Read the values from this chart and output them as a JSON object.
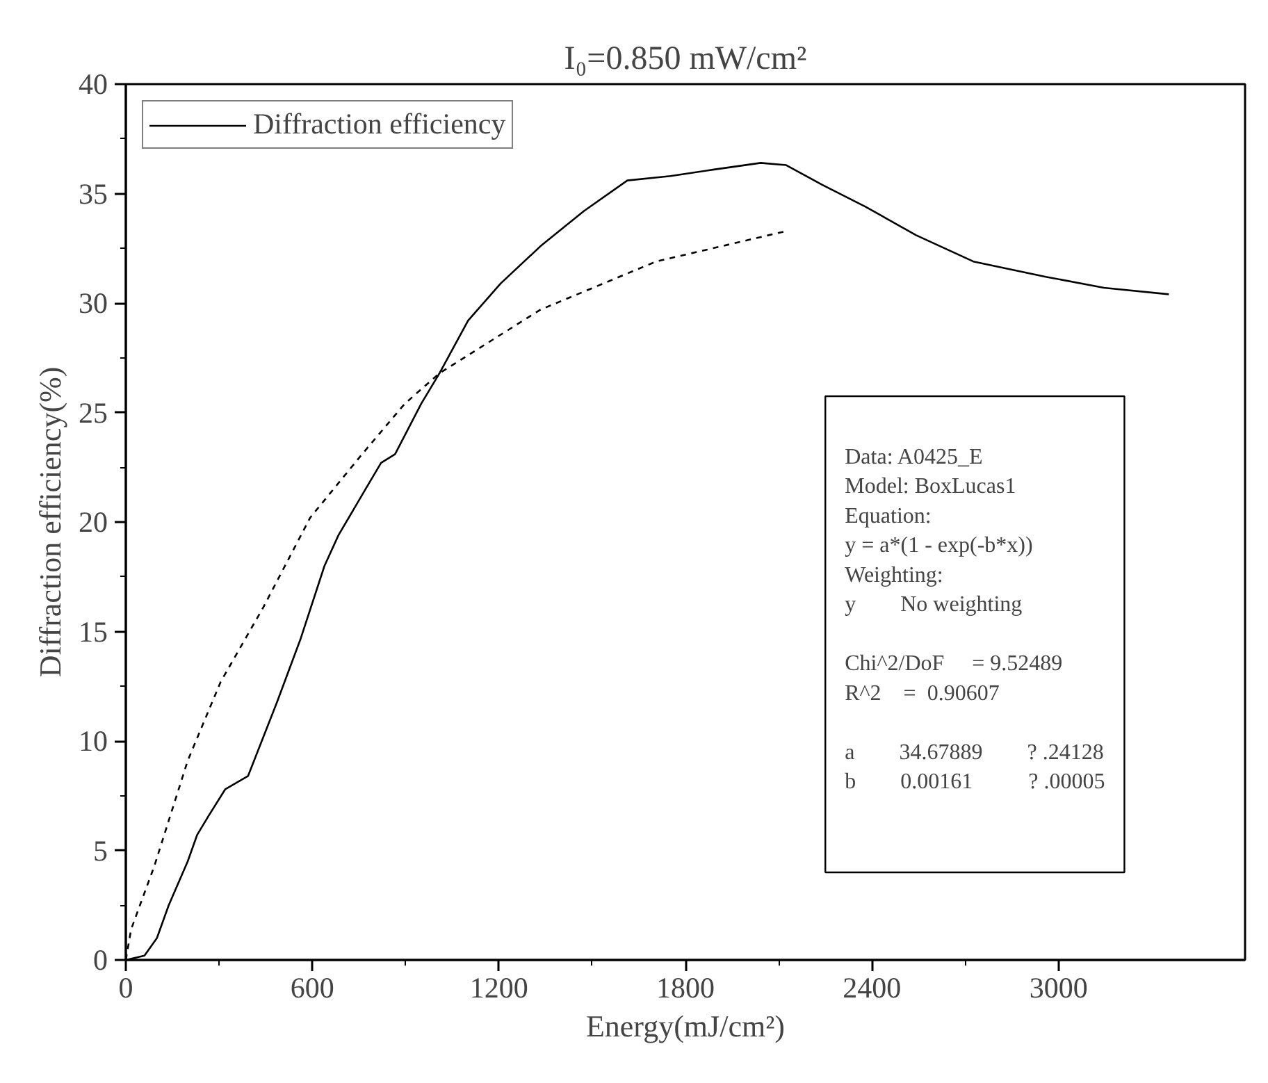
{
  "chart_data": {
    "type": "line",
    "title": "I₀=0.850 mW/cm²",
    "xlabel": "Energy(mJ/cm²)",
    "ylabel": "Diffraction efficiency(%)",
    "xlim": [
      0,
      3600
    ],
    "ylim": [
      0,
      40
    ],
    "xticks": [
      0,
      600,
      1200,
      1800,
      2400,
      3000
    ],
    "yticks": [
      0,
      5,
      10,
      15,
      20,
      25,
      30,
      35,
      40
    ],
    "grid": false,
    "legend": "top left",
    "line_style": "solid",
    "marker": "none",
    "series": [
      {
        "name": "Diffraction efficiency",
        "color": "#000000",
        "x": [
          0,
          60,
          100,
          138,
          199,
          229,
          267,
          320,
          393,
          487,
          563,
          639,
          684,
          775,
          821,
          866,
          950,
          1009,
          1101,
          1206,
          1334,
          1473,
          1613,
          1752,
          1892,
          2042,
          2124,
          2240,
          2379,
          2542,
          2726,
          2959,
          3146,
          3355
        ],
        "values": [
          0,
          0.2,
          1.0,
          2.5,
          4.5,
          5.7,
          6.6,
          7.8,
          8.4,
          11.8,
          14.7,
          18.0,
          19.4,
          21.6,
          22.7,
          23.1,
          25.4,
          26.8,
          29.2,
          30.9,
          32.6,
          34.2,
          35.6,
          35.8,
          36.1,
          36.4,
          36.3,
          35.4,
          34.4,
          33.1,
          31.9,
          31.2,
          30.7,
          30.4
        ]
      },
      {
        "color": "#000000",
        "line_style": "dashed",
        "x": [
          0,
          17,
          92,
          199,
          305,
          442,
          593,
          760,
          897,
          1009,
          1334,
          1706,
          2128
        ],
        "values": [
          0,
          1.4,
          4.3,
          9.1,
          12.7,
          16.1,
          20.2,
          23.1,
          25.4,
          26.8,
          29.7,
          31.9,
          33.3
        ]
      }
    ],
    "annotations": [
      "Data: A0425_E\nModel: BoxLucas1\nEquation:\ny = a*(1 - exp(-b*x))\nWeighting:\ny        No weighting",
      "Chi^2/DoF     = 9.52489\nR^2    =  0.90607",
      "a        34.67889        ? .24128\nb        0.00161          ? .00005"
    ]
  }
}
